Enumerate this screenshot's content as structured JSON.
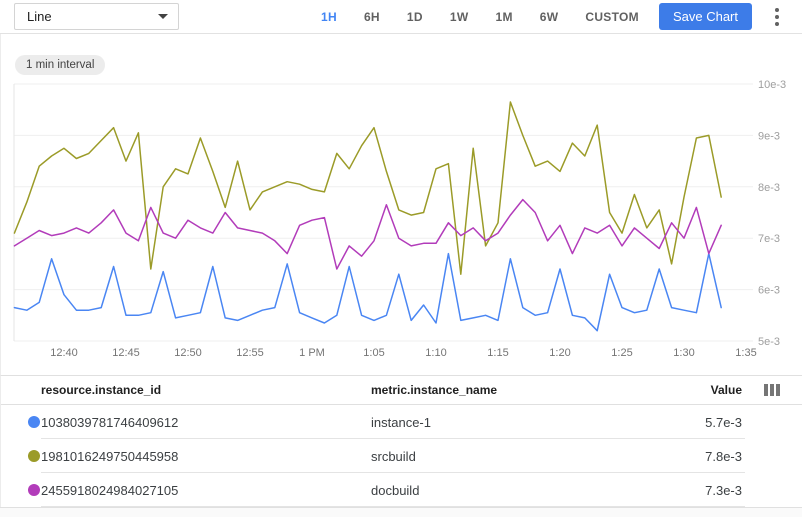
{
  "toolbar": {
    "chart_type_select": {
      "value": "Line"
    },
    "time_ranges": [
      "1H",
      "6H",
      "1D",
      "1W",
      "1M",
      "6W",
      "CUSTOM"
    ],
    "active_time_range": "1H",
    "save_label": "Save Chart"
  },
  "chart": {
    "interval_badge": "1 min interval"
  },
  "chart_data": {
    "type": "line",
    "title": "",
    "xlabel": "",
    "ylabel": "",
    "x_start": "12:36 PM",
    "x_interval": "1 min",
    "x_tick_labels": [
      "12:40",
      "12:45",
      "12:50",
      "12:55",
      "1 PM",
      "1:05",
      "1:10",
      "1:15",
      "1:20",
      "1:25",
      "1:30",
      "1:35"
    ],
    "y_tick_labels": [
      "5e-3",
      "6e-3",
      "7e-3",
      "8e-3",
      "9e-3",
      "10e-3"
    ],
    "y_range_e3": [
      5,
      10
    ],
    "unit_scale": "1e-3",
    "grid": "horizontal",
    "legend_position": "table-below",
    "series": [
      {
        "name": "instance-1",
        "color": "#4a86f3",
        "values_e3": [
          5.65,
          5.6,
          5.75,
          6.6,
          5.9,
          5.6,
          5.6,
          5.65,
          6.45,
          5.5,
          5.5,
          5.55,
          6.35,
          5.45,
          5.5,
          5.55,
          6.45,
          5.45,
          5.4,
          5.5,
          5.6,
          5.65,
          6.5,
          5.55,
          5.45,
          5.35,
          5.5,
          6.45,
          5.5,
          5.4,
          5.5,
          6.3,
          5.4,
          5.7,
          5.35,
          6.7,
          5.4,
          5.45,
          5.5,
          5.4,
          6.6,
          5.65,
          5.5,
          5.55,
          6.4,
          5.5,
          5.45,
          5.2,
          6.3,
          5.65,
          5.55,
          5.6,
          6.4,
          5.65,
          5.6,
          5.55,
          6.7,
          5.65
        ]
      },
      {
        "name": "srcbuild",
        "color": "#9b9b28",
        "values_e3": [
          7.1,
          7.7,
          8.4,
          8.6,
          8.75,
          8.55,
          8.65,
          8.9,
          9.15,
          8.5,
          9.05,
          6.4,
          8.0,
          8.35,
          8.25,
          8.95,
          8.3,
          7.6,
          8.5,
          7.55,
          7.9,
          8.0,
          8.1,
          8.05,
          7.95,
          7.9,
          8.65,
          8.35,
          8.8,
          9.15,
          8.3,
          7.55,
          7.45,
          7.5,
          8.35,
          8.45,
          6.3,
          8.75,
          6.85,
          7.3,
          9.65,
          9.0,
          8.4,
          8.5,
          8.3,
          8.85,
          8.6,
          9.2,
          7.5,
          7.1,
          7.85,
          7.2,
          7.55,
          6.5,
          7.8,
          8.95,
          9.0,
          7.8
        ]
      },
      {
        "name": "docbuild",
        "color": "#b23cba",
        "values_e3": [
          6.85,
          7.0,
          7.15,
          7.05,
          7.1,
          7.2,
          7.1,
          7.3,
          7.55,
          7.1,
          6.95,
          7.6,
          7.1,
          7.0,
          7.35,
          7.2,
          7.1,
          7.5,
          7.2,
          7.15,
          7.1,
          6.95,
          6.7,
          7.25,
          7.35,
          7.4,
          6.4,
          6.85,
          6.65,
          6.95,
          7.65,
          7.0,
          6.85,
          6.9,
          6.9,
          7.3,
          7.05,
          7.2,
          6.95,
          7.1,
          7.45,
          7.75,
          7.5,
          6.95,
          7.25,
          6.7,
          7.2,
          7.1,
          7.25,
          6.85,
          7.2,
          7.0,
          6.8,
          7.3,
          7.0,
          7.6,
          6.7,
          7.25
        ]
      }
    ]
  },
  "legend_table": {
    "columns": {
      "instance_id": "resource.instance_id",
      "instance_name": "metric.instance_name",
      "value": "Value"
    },
    "column_selector_icon": "view-column-icon",
    "rows": [
      {
        "color": "#4a86f3",
        "instance_id": "1038039781746409612",
        "instance_name": "instance-1",
        "value": "5.7e-3"
      },
      {
        "color": "#9b9b28",
        "instance_id": "1981016249750445958",
        "instance_name": "srcbuild",
        "value": "7.8e-3"
      },
      {
        "color": "#b23cba",
        "instance_id": "2455918024984027105",
        "instance_name": "docbuild",
        "value": "7.3e-3"
      }
    ]
  },
  "colors": {
    "accent_blue": "#4285f4",
    "save_button_bg": "#3d7ce8",
    "grid_line": "#efefef",
    "axis_label": "#9e9e9e",
    "x_label": "#757575"
  }
}
